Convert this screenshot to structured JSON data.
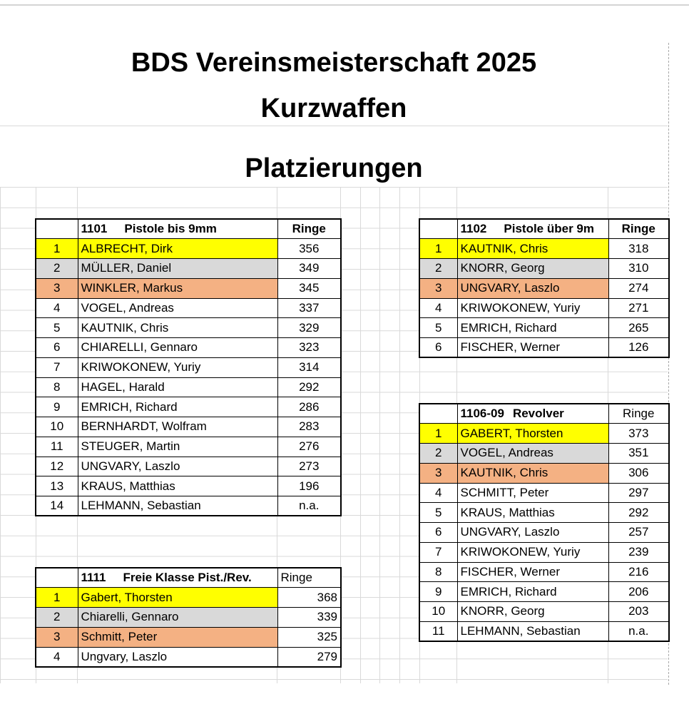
{
  "header": {
    "title_line1": "BDS Vereinsmeisterschaft 2025",
    "title_line2": "Kurzwaffen",
    "subtitle": "Platzierungen"
  },
  "colors": {
    "gold": "#ffff00",
    "silver": "#d9d9d9",
    "bronze": "#f4b183"
  },
  "t1101": {
    "code": "1101",
    "name": "Pistole bis 9mm",
    "score_header": "Ringe",
    "rows": [
      {
        "pos": "1",
        "name": "ALBRECHT, Dirk",
        "score": "356"
      },
      {
        "pos": "2",
        "name": "MÜLLER, Daniel",
        "score": "349"
      },
      {
        "pos": "3",
        "name": "WINKLER, Markus",
        "score": "345"
      },
      {
        "pos": "4",
        "name": "VOGEL, Andreas",
        "score": "337"
      },
      {
        "pos": "5",
        "name": "KAUTNIK, Chris",
        "score": "329"
      },
      {
        "pos": "6",
        "name": "CHIARELLI, Gennaro",
        "score": "323"
      },
      {
        "pos": "7",
        "name": "KRIWOKONEW, Yuriy",
        "score": "314"
      },
      {
        "pos": "8",
        "name": "HAGEL, Harald",
        "score": "292"
      },
      {
        "pos": "9",
        "name": "EMRICH, Richard",
        "score": "286"
      },
      {
        "pos": "10",
        "name": "BERNHARDT, Wolfram",
        "score": "283"
      },
      {
        "pos": "11",
        "name": "STEUGER, Martin",
        "score": "276"
      },
      {
        "pos": "12",
        "name": "UNGVARY, Laszlo",
        "score": "273"
      },
      {
        "pos": "13",
        "name": "KRAUS, Matthias",
        "score": "196"
      },
      {
        "pos": "14",
        "name": "LEHMANN, Sebastian",
        "score": "n.a."
      }
    ]
  },
  "t1102": {
    "code": "1102",
    "name": "Pistole über 9m",
    "score_header": "Ringe",
    "rows": [
      {
        "pos": "1",
        "name": "KAUTNIK, Chris",
        "score": "318"
      },
      {
        "pos": "2",
        "name": "KNORR, Georg",
        "score": "310"
      },
      {
        "pos": "3",
        "name": "UNGVARY, Laszlo",
        "score": "274"
      },
      {
        "pos": "4",
        "name": "KRIWOKONEW, Yuriy",
        "score": "271"
      },
      {
        "pos": "5",
        "name": "EMRICH, Richard",
        "score": "265"
      },
      {
        "pos": "6",
        "name": "FISCHER, Werner",
        "score": "126"
      }
    ]
  },
  "t1106": {
    "code": "1106-09",
    "name": "Revolver",
    "score_header": "Ringe",
    "rows": [
      {
        "pos": "1",
        "name": "GABERT, Thorsten",
        "score": "373"
      },
      {
        "pos": "2",
        "name": "VOGEL, Andreas",
        "score": "351"
      },
      {
        "pos": "3",
        "name": "KAUTNIK, Chris",
        "score": "306"
      },
      {
        "pos": "4",
        "name": "SCHMITT, Peter",
        "score": "297"
      },
      {
        "pos": "5",
        "name": "KRAUS, Matthias",
        "score": "292"
      },
      {
        "pos": "6",
        "name": "UNGVARY, Laszlo",
        "score": "257"
      },
      {
        "pos": "7",
        "name": "KRIWOKONEW, Yuriy",
        "score": "239"
      },
      {
        "pos": "8",
        "name": "FISCHER, Werner",
        "score": "216"
      },
      {
        "pos": "9",
        "name": "EMRICH, Richard",
        "score": "206"
      },
      {
        "pos": "10",
        "name": "KNORR, Georg",
        "score": "203"
      },
      {
        "pos": "11",
        "name": "LEHMANN, Sebastian",
        "score": "n.a."
      }
    ]
  },
  "t1111": {
    "code": "1111",
    "name": "Freie Klasse Pist./Rev.",
    "score_header": "Ringe",
    "rows": [
      {
        "pos": "1",
        "name": "Gabert, Thorsten",
        "score": "368"
      },
      {
        "pos": "2",
        "name": "Chiarelli, Gennaro",
        "score": "339"
      },
      {
        "pos": "3",
        "name": "Schmitt, Peter",
        "score": "325"
      },
      {
        "pos": "4",
        "name": "Ungvary, Laszlo",
        "score": "279"
      }
    ]
  }
}
